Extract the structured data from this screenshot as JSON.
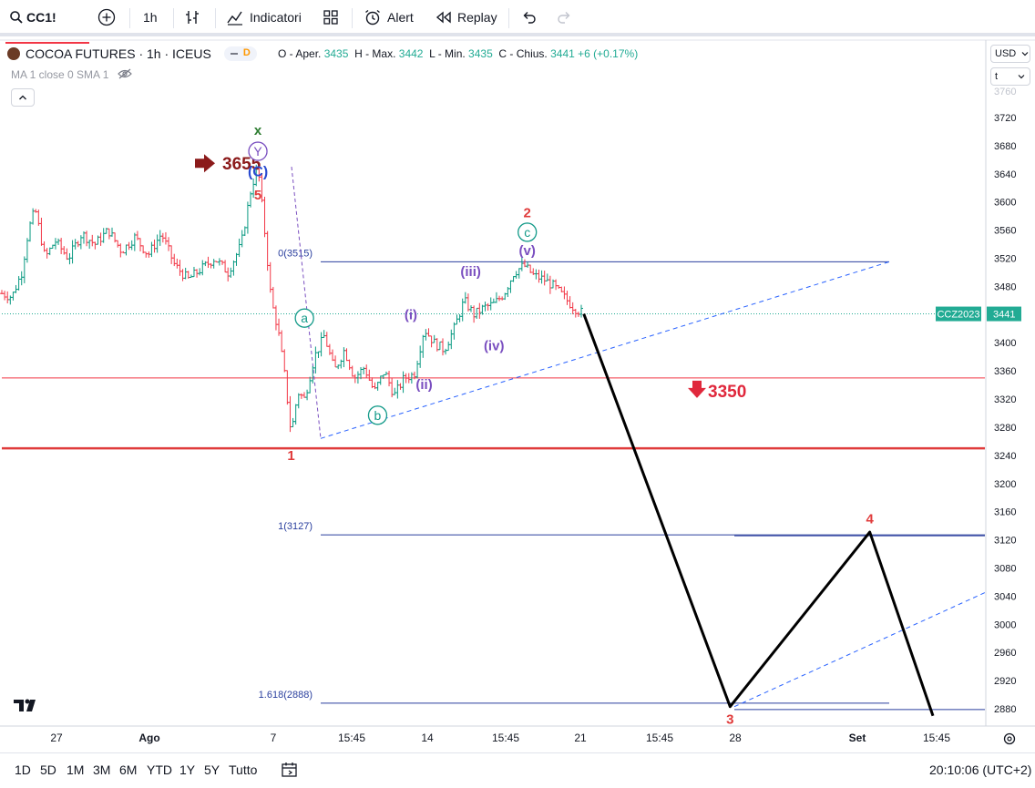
{
  "toolbar": {
    "symbol": "CC1!",
    "interval": "1h",
    "indicators_label": "Indicatori",
    "alert_label": "Alert",
    "replay_label": "Replay"
  },
  "legend": {
    "title": "COCOA FUTURES · 1h · ICEUS",
    "badge": "D",
    "open_label": "O - Aper.",
    "open": "3435",
    "high_label": "H - Max.",
    "high": "3442",
    "low_label": "L - Min.",
    "low": "3435",
    "close_label": "C - Chius.",
    "close": "3441",
    "change": "+6 (+0.17%)",
    "ma_label": "MA 1 close 0 SMA 1"
  },
  "price_scale": {
    "currency": "USD",
    "unit_dropdown": "t",
    "last_label": "CCZ2023",
    "last_value": "3441"
  },
  "timeframes": [
    "1D",
    "5D",
    "1M",
    "3M",
    "6M",
    "YTD",
    "1Y",
    "5Y",
    "Tutto"
  ],
  "clock": "20:10:06 (UTC+2)",
  "colors": {
    "up": "#089981",
    "down": "#f23645",
    "fib": "#2a3f9e",
    "wave_red": "#e03b3b",
    "wave_teal": "#159b8a",
    "wave_purple": "#7a4fc0",
    "dark_red": "#8b1a1a",
    "projection": "#000000",
    "last_price_tag": "#22ab94"
  },
  "chart_data": {
    "type": "candlestick",
    "y_ticks": [
      "3720",
      "3680",
      "3640",
      "3600",
      "3560",
      "3520",
      "3480",
      "3440",
      "3400",
      "3360",
      "3320",
      "3280",
      "3240",
      "3200",
      "3160",
      "3120",
      "3080",
      "3040",
      "3000",
      "2960",
      "2920",
      "2880"
    ],
    "ylim": [
      2870,
      3740
    ],
    "x_ticks": [
      "27",
      "Ago",
      "7",
      "15:45",
      "14",
      "15:45",
      "21",
      "15:45",
      "28",
      "Set",
      "15:45"
    ],
    "price_path": [
      [
        0,
        3470
      ],
      [
        0.3,
        3465
      ],
      [
        0.6,
        3500
      ],
      [
        0.8,
        3560
      ],
      [
        1.0,
        3590
      ],
      [
        1.3,
        3520
      ],
      [
        1.6,
        3545
      ],
      [
        2.0,
        3520
      ],
      [
        2.4,
        3555
      ],
      [
        2.8,
        3540
      ],
      [
        3.2,
        3560
      ],
      [
        3.6,
        3530
      ],
      [
        4.0,
        3550
      ],
      [
        4.4,
        3525
      ],
      [
        4.8,
        3555
      ],
      [
        5.2,
        3510
      ],
      [
        5.6,
        3490
      ],
      [
        6.0,
        3505
      ],
      [
        6.4,
        3520
      ],
      [
        6.8,
        3500
      ],
      [
        7.2,
        3540
      ],
      [
        7.5,
        3620
      ],
      [
        7.7,
        3650
      ],
      [
        7.9,
        3560
      ],
      [
        8.1,
        3460
      ],
      [
        8.3,
        3420
      ],
      [
        8.5,
        3355
      ],
      [
        8.7,
        3270
      ],
      [
        8.9,
        3330
      ],
      [
        9.1,
        3320
      ],
      [
        9.4,
        3380
      ],
      [
        9.7,
        3410
      ],
      [
        10.0,
        3360
      ],
      [
        10.3,
        3390
      ],
      [
        10.6,
        3350
      ],
      [
        10.9,
        3365
      ],
      [
        11.2,
        3330
      ],
      [
        11.5,
        3360
      ],
      [
        11.8,
        3325
      ],
      [
        12.1,
        3350
      ],
      [
        12.4,
        3355
      ],
      [
        12.7,
        3420
      ],
      [
        13.0,
        3400
      ],
      [
        13.3,
        3390
      ],
      [
        13.6,
        3420
      ],
      [
        13.9,
        3460
      ],
      [
        14.2,
        3440
      ],
      [
        14.5,
        3450
      ],
      [
        14.8,
        3455
      ],
      [
        15.1,
        3470
      ],
      [
        15.4,
        3500
      ],
      [
        15.7,
        3510
      ],
      [
        16.0,
        3495
      ],
      [
        16.3,
        3490
      ],
      [
        16.6,
        3480
      ],
      [
        16.9,
        3465
      ],
      [
        17.2,
        3450
      ],
      [
        17.5,
        3441
      ]
    ],
    "horizontal_levels": [
      {
        "value": 3350,
        "label": "3350"
      },
      {
        "value": 3250
      }
    ],
    "fib_levels": [
      {
        "ratio": "0",
        "value": 3515,
        "label": "0(3515)"
      },
      {
        "ratio": "1",
        "value": 3127,
        "label": "1(3127)"
      },
      {
        "ratio": "1.618",
        "value": 2888,
        "label": "1.618(2888)"
      }
    ],
    "projection_path": [
      [
        17.5,
        3441
      ],
      [
        21.9,
        2883
      ],
      [
        26.1,
        3131
      ],
      [
        28.0,
        2870
      ]
    ],
    "wave_labels": [
      {
        "text": "x",
        "x": 7.7,
        "y": 3702,
        "color": "teal"
      },
      {
        "text": "Y",
        "x": 7.7,
        "y": 3672,
        "color": "purple",
        "circle": true
      },
      {
        "text": "(C)",
        "x": 7.7,
        "y": 3643,
        "color": "blue"
      },
      {
        "text": "5",
        "x": 7.7,
        "y": 3610,
        "color": "red"
      },
      {
        "text": "1",
        "x": 8.7,
        "y": 3240,
        "color": "red"
      },
      {
        "text": "a",
        "x": 9.1,
        "y": 3435,
        "color": "teal",
        "circle": true
      },
      {
        "text": "b",
        "x": 11.3,
        "y": 3297,
        "color": "teal",
        "circle": true
      },
      {
        "text": "(i)",
        "x": 12.3,
        "y": 3440,
        "color": "purple"
      },
      {
        "text": "(ii)",
        "x": 12.7,
        "y": 3341,
        "color": "purple"
      },
      {
        "text": "(iii)",
        "x": 14.1,
        "y": 3501,
        "color": "purple"
      },
      {
        "text": "(iv)",
        "x": 14.8,
        "y": 3396,
        "color": "purple"
      },
      {
        "text": "(v)",
        "x": 15.8,
        "y": 3531,
        "color": "purple"
      },
      {
        "text": "c",
        "x": 15.8,
        "y": 3557,
        "color": "teal",
        "circle": true
      },
      {
        "text": "2",
        "x": 15.8,
        "y": 3585,
        "color": "red"
      },
      {
        "text": "3",
        "x": 21.9,
        "y": 2865,
        "color": "red"
      },
      {
        "text": "4",
        "x": 26.1,
        "y": 3150,
        "color": "red"
      }
    ],
    "annotations": [
      {
        "text": "3655",
        "value": 3655,
        "kind": "arrow-right"
      },
      {
        "text": "3350",
        "value": 3350,
        "kind": "arrow-down"
      }
    ]
  }
}
